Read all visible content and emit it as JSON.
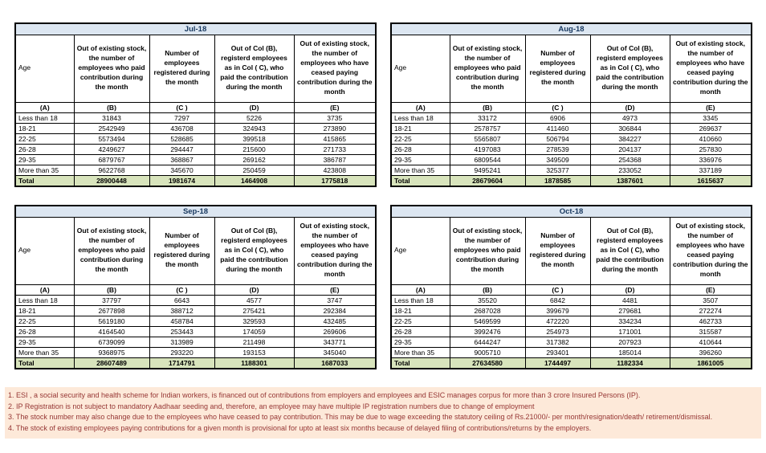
{
  "column_headers": [
    "Age",
    "Out of existing stock, the number of employees who paid contribution during the month",
    "Number of employees registered during the month",
    "Out of Col (B), registerd employees as in Col ( C), who paid the contribution during the month",
    "Out of existing stock, the number of employees who have ceased paying contribution during the month"
  ],
  "column_letters": [
    "(A)",
    "(B)",
    "(C )",
    "(D)",
    "(E)"
  ],
  "tables": [
    {
      "title": "Jul-18",
      "rows": [
        [
          "Less than 18",
          "31843",
          "7297",
          "5226",
          "3735"
        ],
        [
          "18-21",
          "2542949",
          "436708",
          "324943",
          "273890"
        ],
        [
          "22-25",
          "5573494",
          "528685",
          "399518",
          "415865"
        ],
        [
          "26-28",
          "4249627",
          "294447",
          "215600",
          "271733"
        ],
        [
          "29-35",
          "6879767",
          "368867",
          "269162",
          "386787"
        ],
        [
          "More than 35",
          "9622768",
          "345670",
          "250459",
          "423808"
        ]
      ],
      "total": [
        "Total",
        "28900448",
        "1981674",
        "1464908",
        "1775818"
      ]
    },
    {
      "title": "Aug-18",
      "rows": [
        [
          "Less than 18",
          "33172",
          "6906",
          "4973",
          "3345"
        ],
        [
          "18-21",
          "2578757",
          "411460",
          "306844",
          "269637"
        ],
        [
          "22-25",
          "5565807",
          "506794",
          "384227",
          "410660"
        ],
        [
          "26-28",
          "4197083",
          "278539",
          "204137",
          "257830"
        ],
        [
          "29-35",
          "6809544",
          "349509",
          "254368",
          "336976"
        ],
        [
          "More than 35",
          "9495241",
          "325377",
          "233052",
          "337189"
        ]
      ],
      "total": [
        "Total",
        "28679604",
        "1878585",
        "1387601",
        "1615637"
      ]
    },
    {
      "title": "Sep-18",
      "rows": [
        [
          "Less than 18",
          "37797",
          "6643",
          "4577",
          "3747"
        ],
        [
          "18-21",
          "2677898",
          "388712",
          "275421",
          "292384"
        ],
        [
          "22-25",
          "5619180",
          "458784",
          "329593",
          "432485"
        ],
        [
          "26-28",
          "4164540",
          "253443",
          "174059",
          "269606"
        ],
        [
          "29-35",
          "6739099",
          "313989",
          "211498",
          "343771"
        ],
        [
          "More than 35",
          "9368975",
          "293220",
          "193153",
          "345040"
        ]
      ],
      "total": [
        "Total",
        "28607489",
        "1714791",
        "1188301",
        "1687033"
      ]
    },
    {
      "title": "Oct-18",
      "rows": [
        [
          "Less than 18",
          "35520",
          "6842",
          "4481",
          "3507"
        ],
        [
          "18-21",
          "2687028",
          "399679",
          "279681",
          "272274"
        ],
        [
          "22-25",
          "5469599",
          "472220",
          "334234",
          "462733"
        ],
        [
          "26-28",
          "3992476",
          "254973",
          "171001",
          "315587"
        ],
        [
          "29-35",
          "6444247",
          "317382",
          "207923",
          "410644"
        ],
        [
          "More than 35",
          "9005710",
          "293401",
          "185014",
          "396260"
        ]
      ],
      "total": [
        "Total",
        "27634580",
        "1744497",
        "1182334",
        "1861005"
      ]
    }
  ],
  "footnotes": [
    "1. ESI , a social security and health scheme for Indian workers, is financed out of contributions from employers and employees and ESIC manages corpus for more than 3 crore Insured Persons (IP).",
    "2. IP Registration is not subject to mandatory Aadhaar seeding and, therefore, an employee may have multiple IP registration numbers due to change of employment",
    "3. The stock number may also change due to the employees who have ceased to pay contribution. This may  be due to wage exceeding the statutory ceiling of  Rs.21000/- per month/resignation/death/ retirement/dismissal.",
    "4. The stock of existing employees paying contributions for a given month is provisional for upto at least six months because of delayed filing of contributions/returns by the employers."
  ],
  "colors": {
    "month_header_bg": "#DCE6F1",
    "month_header_text": "#17375E",
    "total_row_bg": "#D8E4BC",
    "footnote_bg": "#FDE9D9",
    "footnote_text": "#963634"
  }
}
